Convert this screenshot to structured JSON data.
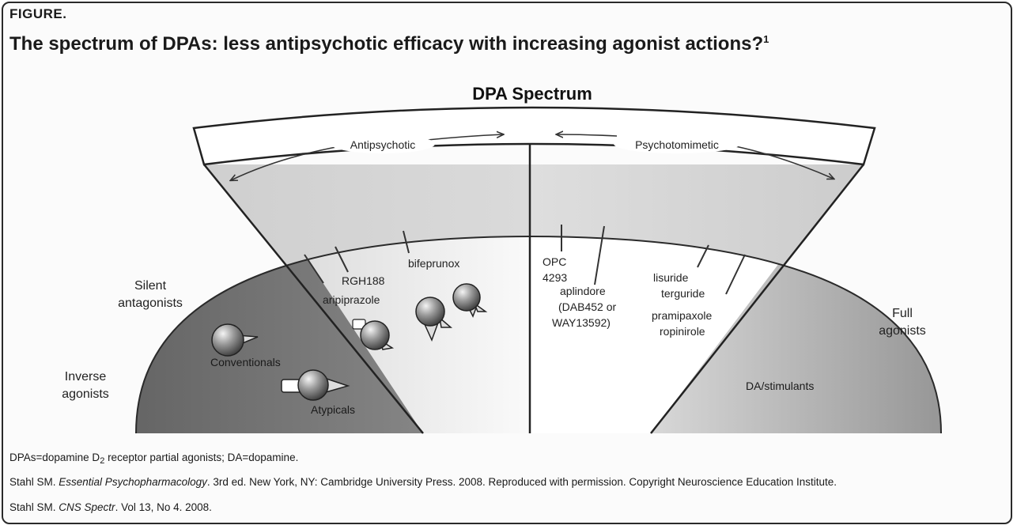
{
  "figure": {
    "label": "FIGURE.",
    "title": "The spectrum of DPAs: less antipsychotic efficacy with increasing agonist actions?",
    "title_sup": "1"
  },
  "diagram": {
    "spectrum_title": "DPA Spectrum",
    "arrow_left_label": "Antipsychotic",
    "arrow_right_label": "Psychotomimetic",
    "side_labels": {
      "silent_line1": "Silent",
      "silent_line2": "antagonists",
      "inverse_line1": "Inverse",
      "inverse_line2": "agonists",
      "full_line1": "Full",
      "full_line2": "agonists"
    },
    "drugs": {
      "rgh188": "RGH188",
      "aripiprazole": "aripiprazole",
      "bifeprunox": "bifeprunox",
      "opc_line1": "OPC",
      "opc_line2": "4293",
      "aplindore_line1": "aplindore",
      "aplindore_line2": "(DAB452 or",
      "aplindore_line3": "WAY13592)",
      "lisuride": "lisuride",
      "terguride": "terguride",
      "pramipaxole": "pramipaxole",
      "ropinirole": "ropinirole"
    },
    "region_labels": {
      "conventionals": "Conventionals",
      "atypicals": "Atypicals",
      "da_stimulants": "DA/stimulants"
    }
  },
  "footnotes": {
    "abbrev_part1": "DPAs=dopamine D",
    "abbrev_sub": "2",
    "abbrev_part2": " receptor partial agonists; DA=dopamine.",
    "ref1_part1": "Stahl SM. ",
    "ref1_italic": "Essential Psychopharmacology",
    "ref1_part2": ". 3rd ed. New York, NY: Cambridge University Press. 2008. Reproduced with permission. Copyright Neuroscience Education Institute.",
    "ref2_part1": "Stahl SM. ",
    "ref2_italic": "CNS Spectr",
    "ref2_part2": ". Vol 13, No 4. 2008."
  },
  "colors": {
    "upper_band": "#d6d6d6",
    "dark_region": "#6f6f6f",
    "mid_region": "#9a9a9a",
    "light_region": "#ededed",
    "receptor_sphere": "#8a8a8a"
  }
}
